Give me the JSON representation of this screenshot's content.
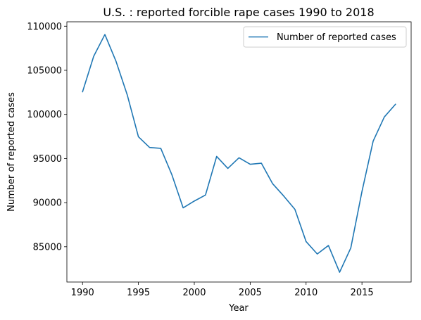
{
  "chart_data": {
    "type": "line",
    "title": "U.S. : reported forcible rape cases 1990 to 2018",
    "xlabel": "Year",
    "ylabel": "Number of reported cases",
    "xlim": [
      1988.6,
      2019.4
    ],
    "ylim": [
      81000,
      110500
    ],
    "x_ticks": [
      1990,
      1995,
      2000,
      2005,
      2010,
      2015
    ],
    "y_ticks": [
      85000,
      90000,
      95000,
      100000,
      105000,
      110000
    ],
    "grid": false,
    "legend_position": "top-right",
    "series_color": "#1f77b4",
    "series": [
      {
        "name": "Number of reported cases",
        "x": [
          1990,
          1991,
          1992,
          1993,
          1994,
          1995,
          1996,
          1997,
          1998,
          1999,
          2000,
          2001,
          2002,
          2003,
          2004,
          2005,
          2006,
          2007,
          2008,
          2009,
          2010,
          2011,
          2012,
          2013,
          2014,
          2015,
          2016,
          2017,
          2018
        ],
        "values": [
          102560,
          106590,
          109060,
          106010,
          102220,
          97470,
          96250,
          96150,
          93140,
          89410,
          90180,
          90860,
          95240,
          93880,
          95090,
          94350,
          94470,
          92160,
          90750,
          89240,
          85590,
          84180,
          85140,
          82110,
          84860,
          91260,
          96970,
          99710,
          101150
        ]
      }
    ]
  }
}
